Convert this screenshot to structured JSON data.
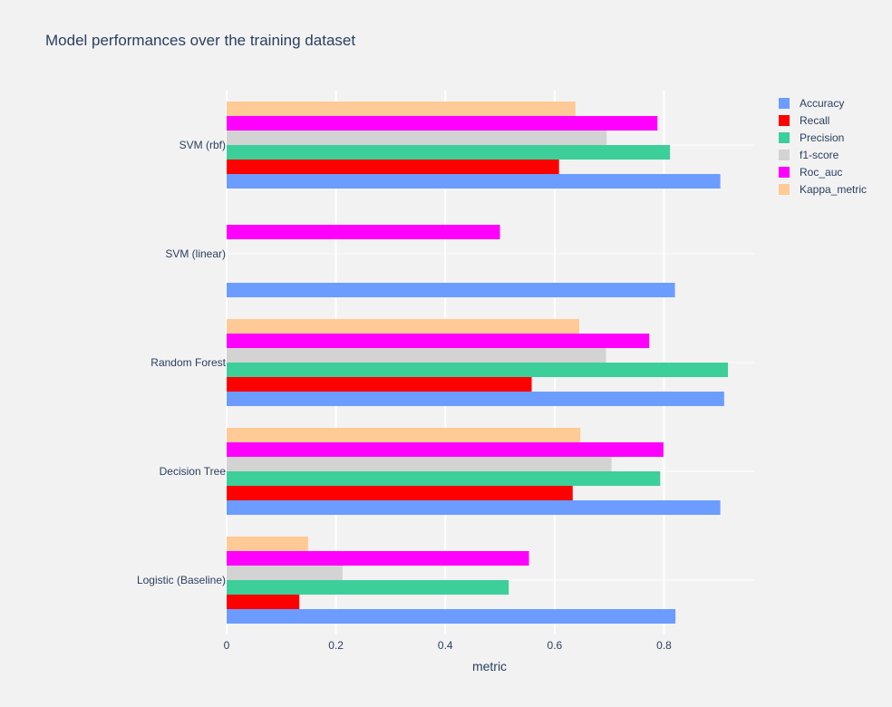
{
  "chart_data": {
    "type": "bar",
    "orientation": "horizontal",
    "title": "Model performances over the training dataset",
    "xlabel": "metric",
    "ylabel": "",
    "xlim": [
      0,
      0.965
    ],
    "xticks": [
      0,
      0.2,
      0.4,
      0.6,
      0.8
    ],
    "xtick_labels": [
      "0",
      "0.2",
      "0.4",
      "0.6",
      "0.8"
    ],
    "grid": true,
    "legend_position": "top-right",
    "categories": [
      "Logistic (Baseline)",
      "Decision Tree",
      "Random Forest",
      "SVM (linear)",
      "SVM (rbf)"
    ],
    "series": [
      {
        "name": "Accuracy",
        "color": "#6c9cff",
        "values": [
          0.821,
          0.903,
          0.91,
          0.82,
          0.903
        ]
      },
      {
        "name": "Recall",
        "color": "#ff0000",
        "values": [
          0.133,
          0.633,
          0.558,
          0,
          0.608
        ]
      },
      {
        "name": "Precision",
        "color": "#3ccf9a",
        "values": [
          0.516,
          0.793,
          0.917,
          0,
          0.811
        ]
      },
      {
        "name": "f1-score",
        "color": "#d3d3d3",
        "values": [
          0.212,
          0.704,
          0.694,
          0,
          0.695
        ]
      },
      {
        "name": "Roc_auc",
        "color": "#ff00ff",
        "values": [
          0.553,
          0.799,
          0.773,
          0.5,
          0.788
        ]
      },
      {
        "name": "Kappa_metric",
        "color": "#ffca95",
        "values": [
          0.149,
          0.647,
          0.645,
          0,
          0.638
        ]
      }
    ]
  }
}
